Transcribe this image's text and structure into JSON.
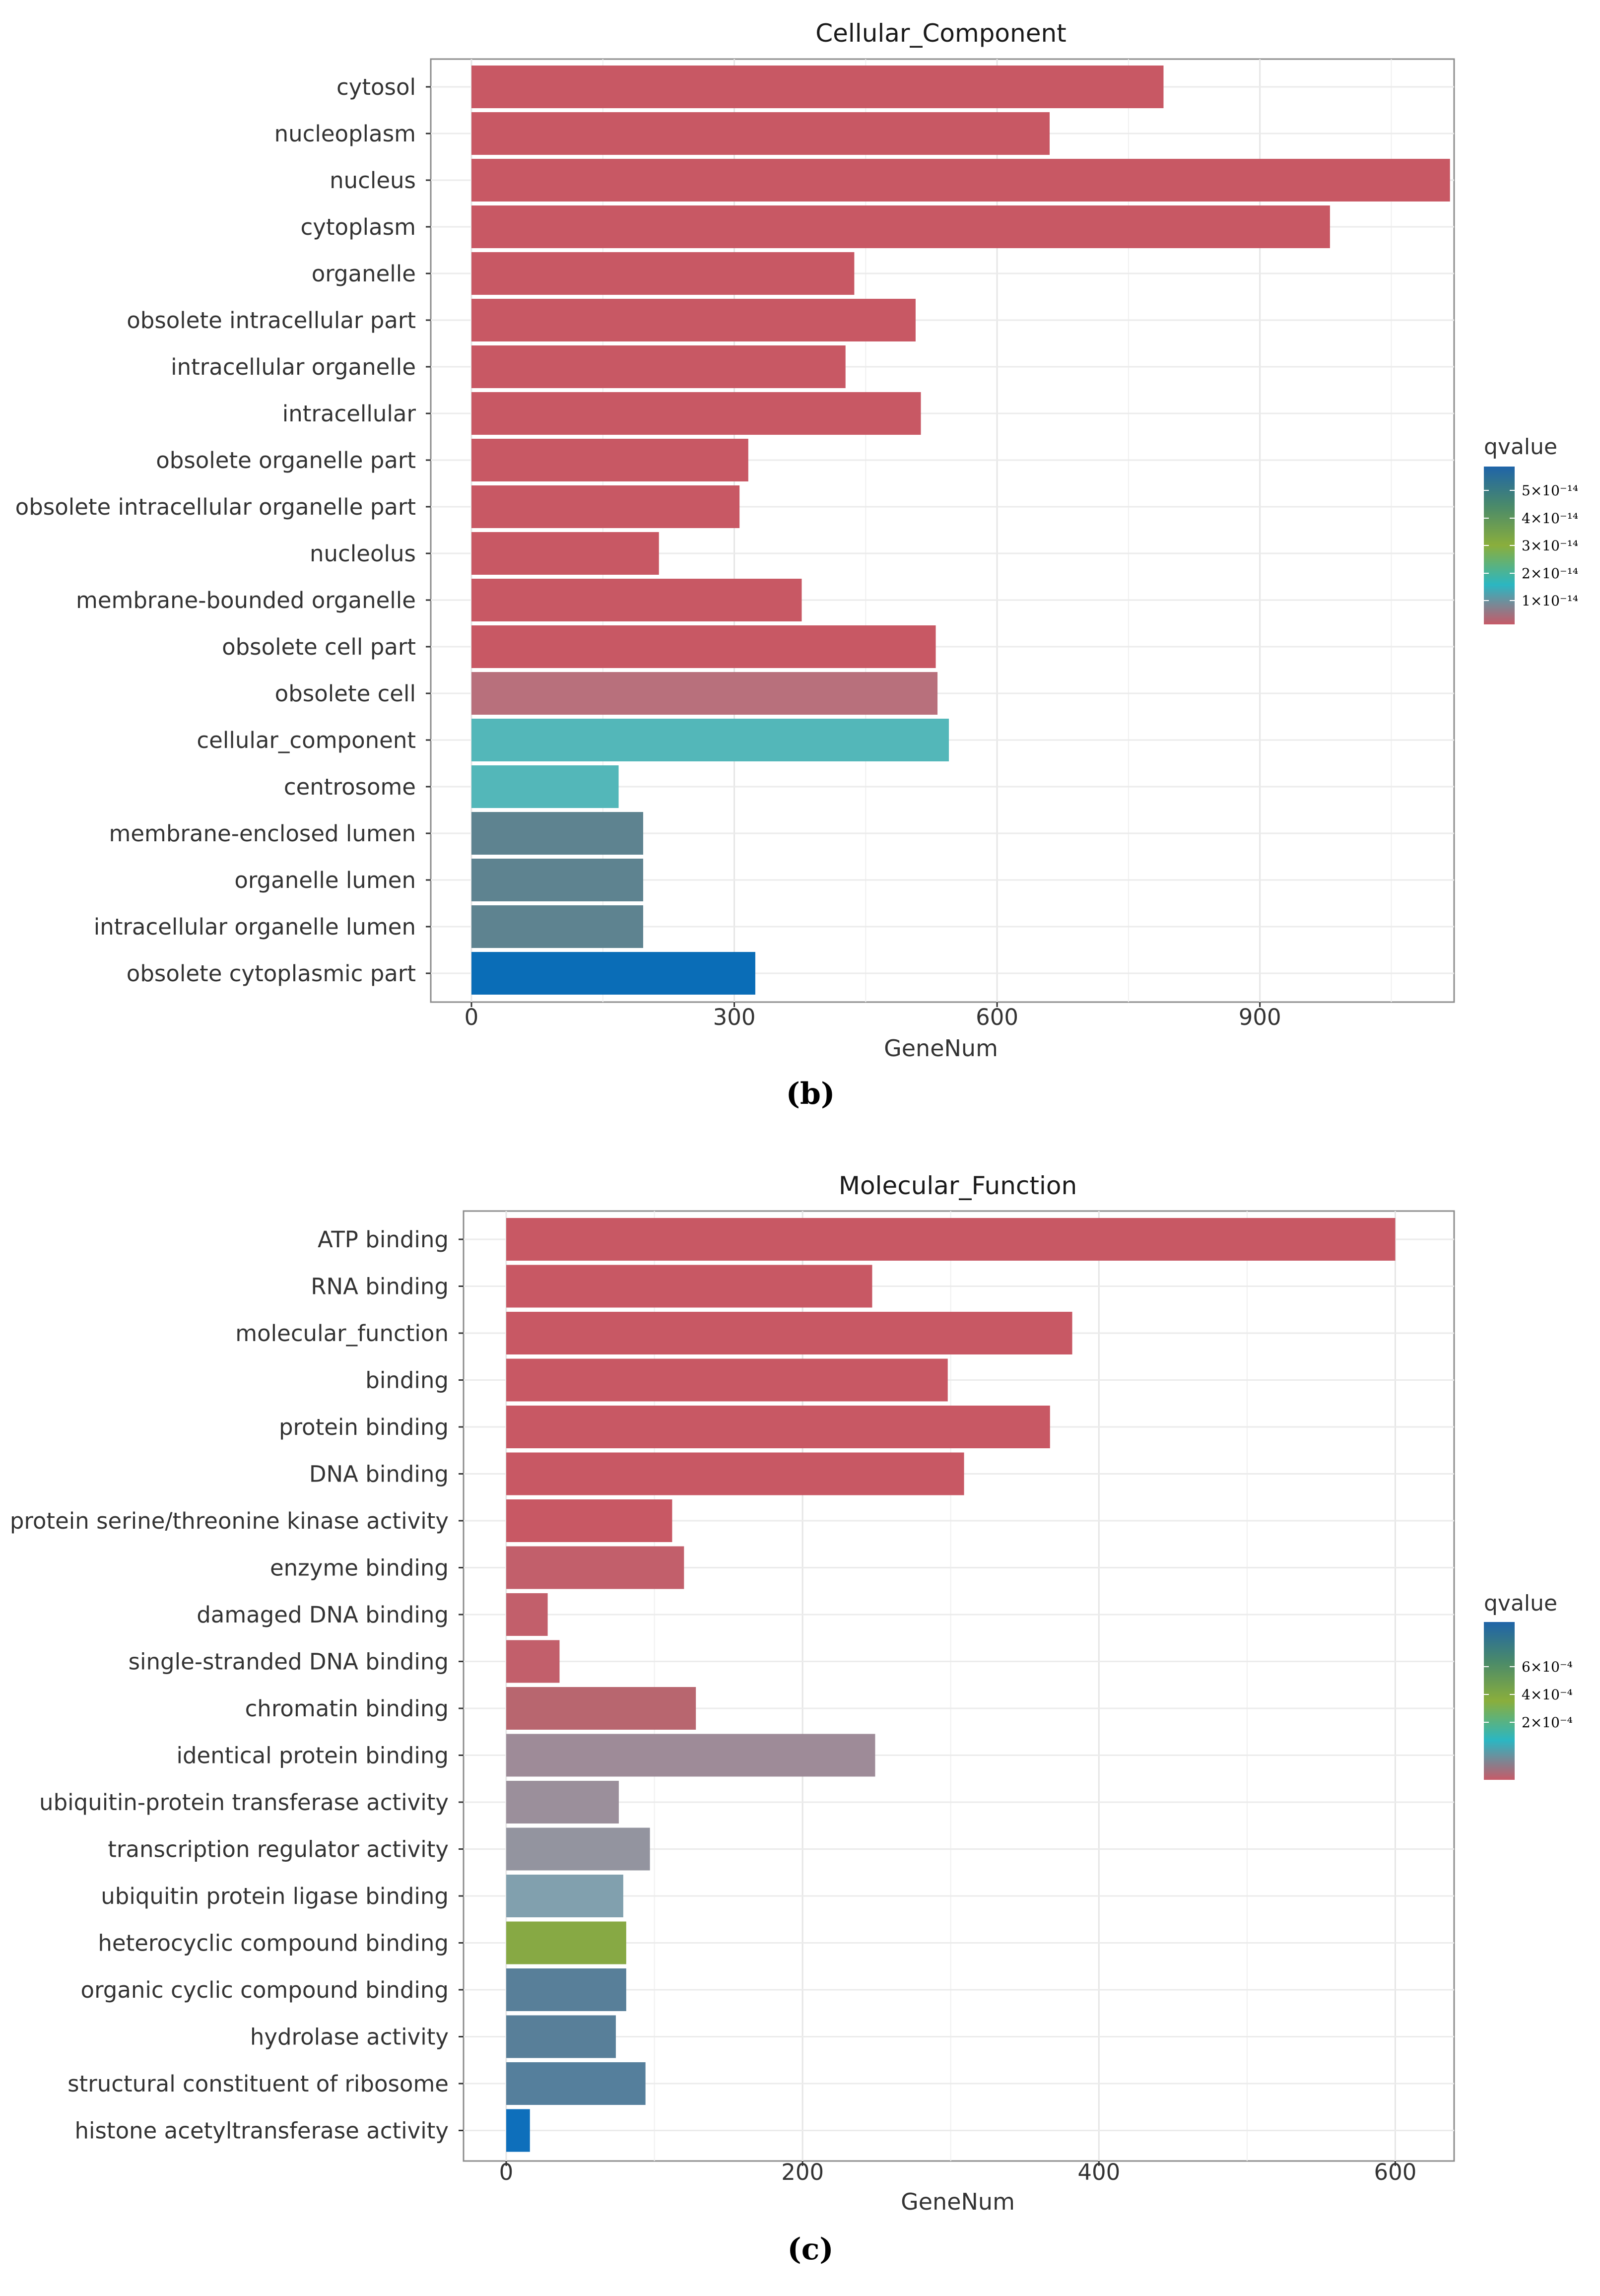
{
  "chart_data": [
    {
      "type": "bar",
      "orientation": "horizontal",
      "panel_label": "(b)",
      "title": "Cellular_Component",
      "xlabel": "GeneNum",
      "ylabel": "",
      "xlim": [
        0,
        1120
      ],
      "xticks": [
        0,
        300,
        600,
        900
      ],
      "grid": true,
      "categories": [
        "cytosol",
        "nucleoplasm",
        "nucleus",
        "cytoplasm",
        "organelle",
        "obsolete intracellular part",
        "intracellular organelle",
        "intracellular",
        "obsolete organelle part",
        "obsolete intracellular organelle part",
        "nucleolus",
        "membrane-bounded organelle",
        "obsolete cell part",
        "obsolete cell",
        "cellular_component",
        "centrosome",
        "membrane-enclosed lumen",
        "organelle lumen",
        "intracellular organelle lumen",
        "obsolete cytoplasmic part"
      ],
      "values": [
        790,
        660,
        1117,
        980,
        437,
        507,
        427,
        513,
        316,
        306,
        214,
        377,
        530,
        532,
        545,
        168,
        196,
        196,
        196,
        324
      ],
      "bar_colors": [
        "#c85864",
        "#c85864",
        "#c85864",
        "#c85864",
        "#c85864",
        "#c85864",
        "#c85864",
        "#c85864",
        "#c85864",
        "#c85864",
        "#c85864",
        "#c85864",
        "#c85864",
        "#b8707c",
        "#53b7b9",
        "#53b7b9",
        "#5e8390",
        "#5e8390",
        "#5e8390",
        "#0a6db7"
      ],
      "legend": {
        "title": "qvalue",
        "position": "right",
        "labels": [
          "5×10⁻¹⁴",
          "4×10⁻¹⁴",
          "3×10⁻¹⁴",
          "2×10⁻¹⁴",
          "1×10⁻¹⁴"
        ],
        "gradient": [
          "#1f64a8",
          "#4a8a6a",
          "#8aae3c",
          "#2bb6c2",
          "#c75a68"
        ]
      }
    },
    {
      "type": "bar",
      "orientation": "horizontal",
      "panel_label": "(c)",
      "title": "Molecular_Function",
      "xlabel": "GeneNum",
      "ylabel": "",
      "xlim": [
        0,
        630
      ],
      "xticks": [
        0,
        200,
        400,
        600
      ],
      "grid": true,
      "categories": [
        "ATP binding",
        "RNA binding",
        "molecular_function",
        "binding",
        "protein binding",
        "DNA binding",
        "protein serine/threonine kinase activity",
        "enzyme binding",
        "damaged DNA binding",
        "single-stranded DNA binding",
        "chromatin binding",
        "identical protein binding",
        "ubiquitin-protein transferase activity",
        "transcription regulator activity",
        "ubiquitin protein ligase binding",
        "heterocyclic compound binding",
        "organic cyclic compound binding",
        "hydrolase activity",
        "structural constituent of ribosome",
        "histone acetyltransferase activity"
      ],
      "values": [
        600,
        247,
        382,
        298,
        367,
        309,
        112,
        120,
        28,
        36,
        128,
        249,
        76,
        97,
        79,
        81,
        81,
        74,
        94,
        16
      ],
      "bar_colors": [
        "#c85864",
        "#c85864",
        "#c85864",
        "#c85864",
        "#c85864",
        "#c85864",
        "#c85864",
        "#c25f6b",
        "#c25f6b",
        "#c25f6b",
        "#b8666f",
        "#9e8b98",
        "#9b8f9b",
        "#93949f",
        "#81a0ae",
        "#87a944",
        "#587f99",
        "#587f99",
        "#557f9c",
        "#0e6fbb"
      ],
      "legend": {
        "title": "qvalue",
        "position": "right",
        "labels": [
          "6×10⁻⁴",
          "4×10⁻⁴",
          "2×10⁻⁴"
        ],
        "gradient": [
          "#1f64a8",
          "#4a8a6a",
          "#8aae3c",
          "#2bb6c2",
          "#c75a68"
        ]
      }
    }
  ]
}
